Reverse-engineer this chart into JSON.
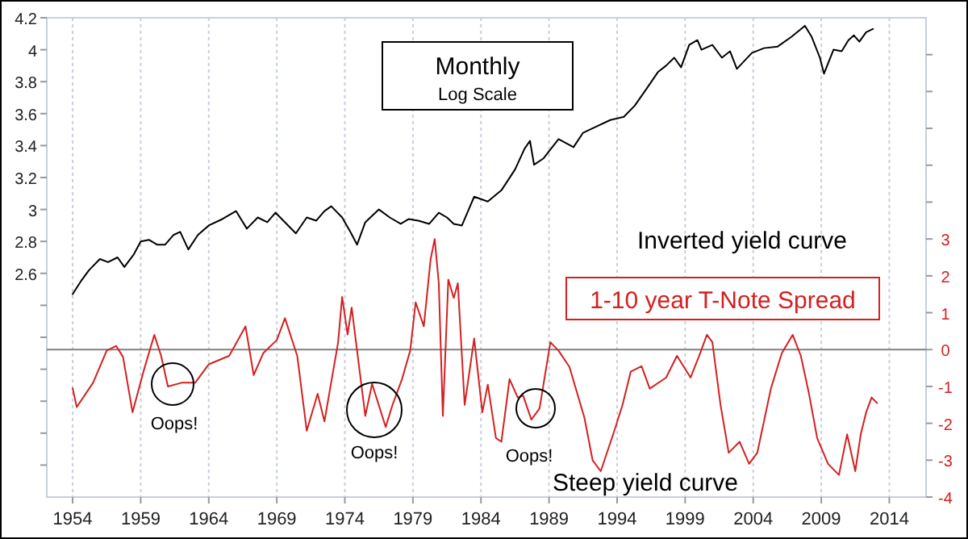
{
  "chart_data": {
    "type": "line",
    "title": "Monthly",
    "subtitle": "Log Scale",
    "xlim": [
      1952.1,
      2016.7
    ],
    "xticks": [
      1954,
      1959,
      1964,
      1969,
      1974,
      1979,
      1984,
      1989,
      1994,
      1999,
      2004,
      2009,
      2014
    ],
    "ylim": [
      1.2,
      4.2
    ],
    "yticks": [
      {
        "value": 1.4,
        "label": null
      },
      {
        "value": 1.6,
        "label": null
      },
      {
        "value": 1.8,
        "label": null
      },
      {
        "value": 2.0,
        "label": null
      },
      {
        "value": 2.2,
        "label": null
      },
      {
        "value": 2.4,
        "label": null
      },
      2.6,
      2.8,
      3,
      3.2,
      3.4,
      3.6,
      3.8,
      4,
      4.2
    ],
    "y2lim": [
      -4,
      9
    ],
    "y2ticks": [
      -4,
      -3,
      -2,
      -1,
      0,
      1,
      2,
      3,
      {
        "value": 4,
        "label": null
      },
      {
        "value": 5,
        "label": null
      },
      {
        "value": 6,
        "label": null
      },
      {
        "value": 7,
        "label": null
      },
      {
        "value": 8,
        "label": null
      }
    ],
    "grid": "x",
    "legend": "right",
    "line_style": "solid",
    "marker": "none",
    "ref_lines": [
      {
        "axis": "y2",
        "value": 0,
        "color": "#808080"
      }
    ],
    "annotations": [
      "Inverted yield curve",
      "Steep yield curve",
      "Oops!",
      "Oops!",
      "Oops!"
    ],
    "series": [
      {
        "color": "#000000",
        "x": [
          1954.0,
          1954.6,
          1955.2,
          1956.0,
          1956.6,
          1957.3,
          1957.8,
          1958.5,
          1959.0,
          1959.6,
          1960.2,
          1960.8,
          1961.4,
          1961.9,
          1962.5,
          1963.2,
          1964.0,
          1965.0,
          1966.0,
          1966.8,
          1967.6,
          1968.3,
          1968.9,
          1969.6,
          1970.4,
          1971.2,
          1971.9,
          1972.5,
          1973.0,
          1973.8,
          1974.4,
          1974.9,
          1975.5,
          1976.5,
          1977.3,
          1978.1,
          1978.7,
          1979.4,
          1980.2,
          1980.9,
          1981.5,
          1982.0,
          1982.6,
          1983.5,
          1984.5,
          1985.5,
          1986.5,
          1987.2,
          1987.6,
          1987.9,
          1988.6,
          1989.7,
          1990.8,
          1991.5,
          1992.5,
          1993.5,
          1994.5,
          1995.3,
          1996.2,
          1997.0,
          1997.6,
          1998.2,
          1998.7,
          1999.3,
          1999.9,
          2000.2,
          2001.0,
          2001.7,
          2002.3,
          2002.8,
          2003.9,
          2004.8,
          2005.8,
          2006.8,
          2007.8,
          2008.3,
          2008.9,
          2009.2,
          2009.9,
          2010.5,
          2011.0,
          2011.4,
          2011.8,
          2012.3,
          2012.8
        ],
        "values": [
          2.47,
          2.55,
          2.62,
          2.69,
          2.67,
          2.7,
          2.64,
          2.72,
          2.8,
          2.81,
          2.78,
          2.78,
          2.84,
          2.86,
          2.75,
          2.84,
          2.9,
          2.94,
          2.99,
          2.88,
          2.95,
          2.92,
          2.98,
          2.92,
          2.85,
          2.95,
          2.93,
          2.99,
          3.02,
          2.95,
          2.86,
          2.78,
          2.92,
          3.0,
          2.95,
          2.91,
          2.94,
          2.93,
          2.91,
          2.98,
          2.95,
          2.91,
          2.9,
          3.08,
          3.05,
          3.12,
          3.25,
          3.38,
          3.43,
          3.28,
          3.32,
          3.44,
          3.39,
          3.48,
          3.52,
          3.56,
          3.58,
          3.65,
          3.76,
          3.86,
          3.9,
          3.95,
          3.89,
          4.03,
          4.06,
          4.0,
          4.03,
          3.95,
          3.99,
          3.88,
          3.98,
          4.01,
          4.02,
          4.08,
          4.15,
          4.08,
          3.95,
          3.85,
          4.0,
          3.99,
          4.06,
          4.09,
          4.05,
          4.11,
          4.13
        ]
      },
      {
        "name": "1-10 year T-Note Spread",
        "color": "#d42020",
        "axis": "y2",
        "x": [
          1954.0,
          1954.3,
          1955.5,
          1956.5,
          1957.2,
          1957.7,
          1958.4,
          1959.2,
          1960.0,
          1960.5,
          1961.0,
          1962.0,
          1963.0,
          1964.0,
          1965.5,
          1966.7,
          1967.3,
          1968.0,
          1969.0,
          1969.6,
          1970.5,
          1971.2,
          1972.0,
          1972.5,
          1973.5,
          1973.8,
          1974.2,
          1974.5,
          1975.5,
          1976.0,
          1977.0,
          1977.5,
          1978.2,
          1978.8,
          1979.2,
          1979.8,
          1980.3,
          1980.6,
          1980.9,
          1981.2,
          1981.6,
          1982.0,
          1982.3,
          1982.8,
          1983.5,
          1984.1,
          1984.5,
          1985.1,
          1985.5,
          1986.1,
          1986.7,
          1987.1,
          1987.7,
          1988.3,
          1989.1,
          1989.7,
          1990.5,
          1991.6,
          1992.2,
          1992.8,
          1993.8,
          1994.4,
          1995.0,
          1995.8,
          1996.4,
          1997.6,
          1998.4,
          1999.4,
          2000.0,
          2000.6,
          2001.0,
          2001.6,
          2002.2,
          2003.0,
          2003.7,
          2004.3,
          2005.3,
          2006.1,
          2006.9,
          2007.5,
          2008.1,
          2008.7,
          2009.5,
          2010.3,
          2010.9,
          2011.5,
          2011.9,
          2012.3,
          2012.7,
          2013.1
        ],
        "values": [
          -1.05,
          -1.56,
          -0.9,
          -0.03,
          0.1,
          -0.2,
          -1.7,
          -0.6,
          0.4,
          -0.17,
          -1.0,
          -0.9,
          -0.9,
          -0.4,
          -0.17,
          0.63,
          -0.69,
          -0.1,
          0.26,
          0.85,
          -0.17,
          -2.2,
          -1.2,
          -1.95,
          0.19,
          1.43,
          0.41,
          1.14,
          -1.8,
          -0.93,
          -2.1,
          -1.5,
          -0.8,
          -0.03,
          1.28,
          0.63,
          2.45,
          3.0,
          1.8,
          -1.8,
          1.9,
          1.4,
          1.8,
          -1.5,
          0.3,
          -1.7,
          -0.95,
          -2.4,
          -2.5,
          -0.8,
          -1.3,
          -1.25,
          -1.9,
          -1.6,
          0.2,
          -0.03,
          -0.47,
          -1.85,
          -3.0,
          -3.3,
          -2.2,
          -1.5,
          -0.6,
          -0.45,
          -1.06,
          -0.76,
          -0.17,
          -0.76,
          -0.2,
          0.4,
          0.2,
          -1.5,
          -2.8,
          -2.5,
          -3.1,
          -2.8,
          -1.06,
          -0.1,
          0.4,
          -0.17,
          -1.2,
          -2.4,
          -3.1,
          -3.4,
          -2.3,
          -3.3,
          -2.3,
          -1.7,
          -1.3,
          -1.45
        ]
      }
    ]
  }
}
